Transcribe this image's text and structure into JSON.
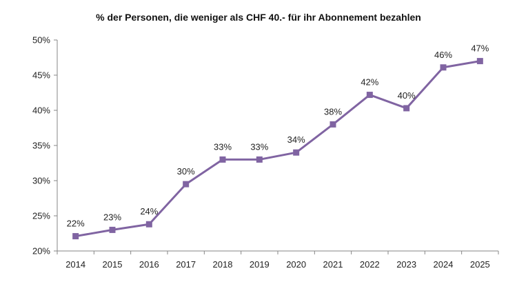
{
  "chart_data": {
    "type": "line",
    "title": "% der Personen, die weniger als CHF 40.- für ihr Abonnement bezahlen",
    "xlabel": "",
    "ylabel": "",
    "categories": [
      "2014",
      "2015",
      "2016",
      "2017",
      "2018",
      "2019",
      "2020",
      "2021",
      "2022",
      "2023",
      "2024",
      "2025"
    ],
    "series": [
      {
        "name": "% der Personen",
        "values": [
          22.1,
          23.0,
          23.8,
          29.5,
          33.0,
          33.0,
          34.0,
          38.0,
          42.2,
          40.3,
          46.1,
          47.0
        ],
        "labels": [
          "22%",
          "23%",
          "24%",
          "30%",
          "33%",
          "33%",
          "34%",
          "38%",
          "42%",
          "40%",
          "46%",
          "47%"
        ]
      }
    ],
    "ylim": [
      20,
      50
    ],
    "yticks": [
      20,
      25,
      30,
      35,
      40,
      45,
      50
    ],
    "ytick_labels": [
      "20%",
      "25%",
      "30%",
      "35%",
      "40%",
      "45%",
      "50%"
    ],
    "grid": false,
    "legend": "none",
    "colors": {
      "line": "#8064A2",
      "axis": "#868686",
      "text": "#222222"
    }
  }
}
